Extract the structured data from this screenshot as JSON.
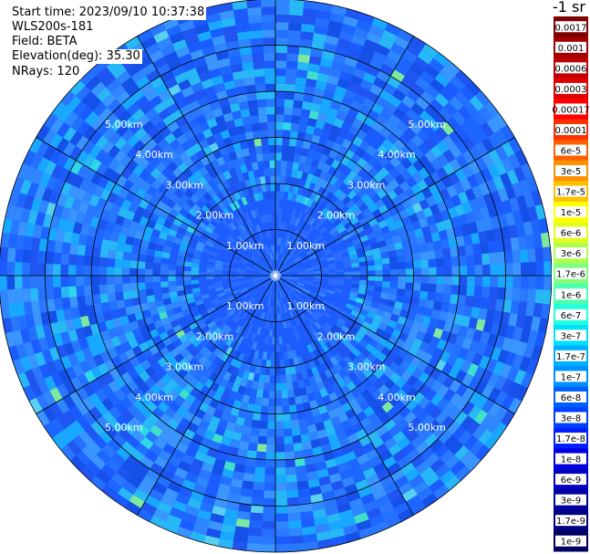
{
  "info": {
    "start_time": "Start time: 2023/09/10 10:37:38",
    "device": "WLS200s-181",
    "field": "Field: BETA",
    "elevation": "Elevation(deg): 35.30",
    "nrays": "NRays: 120"
  },
  "colorbar": {
    "unit": "-1 sr",
    "labels": [
      "0.0017",
      "0.001",
      "0.0006",
      "0.0003",
      "0.00017",
      "0.0001",
      "6e-5",
      "3e-5",
      "1.7e-5",
      "1e-5",
      "6e-6",
      "3e-6",
      "1.7e-6",
      "1e-6",
      "6e-7",
      "3e-7",
      "1.7e-7",
      "1e-7",
      "6e-8",
      "3e-8",
      "1.7e-8",
      "1e-8",
      "6e-9",
      "3e-9",
      "1.7e-9",
      "1e-9"
    ],
    "colors": [
      "#7f0000",
      "#a00000",
      "#c00000",
      "#e00000",
      "#ff0000",
      "#ff3000",
      "#ff6000",
      "#ff9000",
      "#ffc000",
      "#ffff00",
      "#e0ff20",
      "#b0ff50",
      "#80ff80",
      "#50ffb0",
      "#20ffe0",
      "#00e0ff",
      "#00b0ff",
      "#0090ff",
      "#0060ff",
      "#0040ff",
      "#0020ff",
      "#0000e0",
      "#0000c0",
      "#0000a0",
      "#000080",
      "#000060"
    ]
  },
  "chart_data": {
    "type": "heatmap",
    "projection": "polar-ppi",
    "rings_km": [
      1,
      2,
      3,
      4,
      5
    ],
    "ring_labels": [
      "1.00km",
      "2.00km",
      "3.00km",
      "4.00km",
      "5.00km"
    ],
    "max_range_km": 6,
    "spoke_angles_deg": [
      0,
      30,
      60,
      90,
      120,
      150,
      180,
      210,
      240,
      270,
      300,
      330
    ],
    "nrays": 120,
    "dominant_value_range": [
      "1e-8",
      "1e-7"
    ]
  }
}
